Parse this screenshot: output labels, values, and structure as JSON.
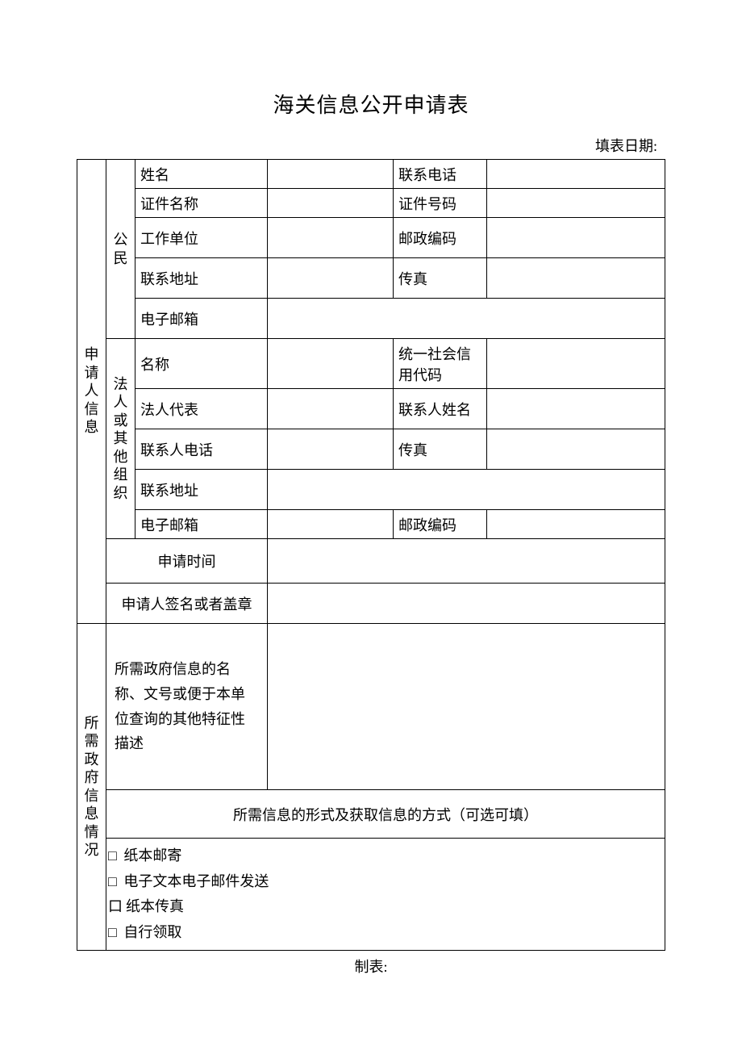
{
  "title": "海关信息公开申请表",
  "fill_date_label": "填表日期:",
  "footer": "制表:",
  "section1": {
    "header": "申请人信息",
    "citizen": {
      "header": "公民",
      "rows": {
        "name_label": "姓名",
        "phone_label": "联系电话",
        "idname_label": "证件名称",
        "idno_label": "证件号码",
        "workunit_label": "工作单位",
        "zip_label": "邮政编码",
        "addr_label": "联系地址",
        "fax_label": "传真",
        "email_label": "电子邮箱"
      }
    },
    "org": {
      "header": "法人或其他组织",
      "rows": {
        "name_label": "名称",
        "uscc_label": "统一社会信用代码",
        "legalrep_label": "法人代表",
        "contact_name_label": "联系人姓名",
        "contact_phone_label": "联系人电话",
        "fax_label": "传真",
        "addr_label": "联系地址",
        "email_label": "电子邮箱",
        "zip_label": "邮政编码"
      }
    },
    "apply_time_label": "申请时间",
    "signature_label": "申请人签名或者盖章"
  },
  "section2": {
    "header": "所需政府信息情况",
    "desc_label": "所需政府信息的名称、文号或便于本单位查询的其他特征性描述",
    "format_header": "所需信息的形式及获取信息的方式（可选可填）",
    "options": {
      "opt1_box": "□",
      "opt1_label": "纸本邮寄",
      "opt2_box": "□",
      "opt2_label": "电子文本电子邮件发送",
      "opt3_box": "口",
      "opt3_label": "纸本传真",
      "opt4_box": "□",
      "opt4_label": "自行领取"
    }
  },
  "colors": {
    "border": "#000000",
    "text": "#000000",
    "background": "#ffffff"
  },
  "font_sizes": {
    "title": 26,
    "body": 18
  }
}
